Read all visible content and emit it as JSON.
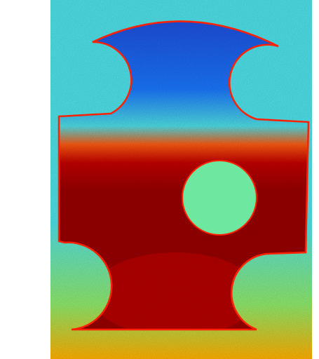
{
  "image": {
    "kind": "false-color (jet colormap) field map of a puzzle-piece shaped specimen",
    "colormap": [
      "#00007f",
      "#0000ff",
      "#007fff",
      "#00ffff",
      "#7fff7f",
      "#ffff00",
      "#ff7f00",
      "#ff0000",
      "#7f0000"
    ],
    "colors": {
      "page": "#ffffff",
      "background_field": "#4fe0e8",
      "upper_lobe": "#1a78ff",
      "upper_lobe_deep": "#1e50e0",
      "lower_body": "#9a0000",
      "lower_body_hot": "#c40000",
      "transition_band": "#ff5a10",
      "hole": "#6ee8a0",
      "lower_side_circles": "#8fe86a",
      "bottom_strip": "#ffb000",
      "edge_highlight": "#ff2000"
    }
  }
}
